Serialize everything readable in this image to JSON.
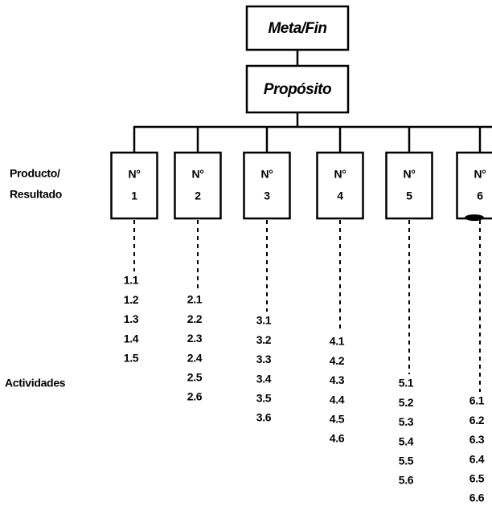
{
  "header": {
    "goal": "Meta/Fin",
    "purpose": "Propósito"
  },
  "row_labels": {
    "product_line1": "Producto/",
    "product_line2": "Resultado",
    "activities": "Actividades"
  },
  "products": [
    {
      "label": "N°",
      "number": "1",
      "activities": [
        "1.1",
        "1.2",
        "1.3",
        "1.4",
        "1.5"
      ]
    },
    {
      "label": "N°",
      "number": "2",
      "activities": [
        "2.1",
        "2.2",
        "2.3",
        "2.4",
        "2.5",
        "2.6"
      ]
    },
    {
      "label": "N°",
      "number": "3",
      "activities": [
        "3.1",
        "3.2",
        "3.3",
        "3.4",
        "3.5",
        "3.6"
      ]
    },
    {
      "label": "N°",
      "number": "4",
      "activities": [
        "4.1",
        "4.2",
        "4.3",
        "4.4",
        "4.5",
        "4.6"
      ]
    },
    {
      "label": "N°",
      "number": "5",
      "activities": [
        "5.1",
        "5.2",
        "5.3",
        "5.4",
        "5.5",
        "5.6"
      ]
    },
    {
      "label": "N°",
      "number": "6",
      "activities": [
        "6.1",
        "6.2",
        "6.3",
        "6.4",
        "6.5",
        "6.6"
      ]
    }
  ]
}
